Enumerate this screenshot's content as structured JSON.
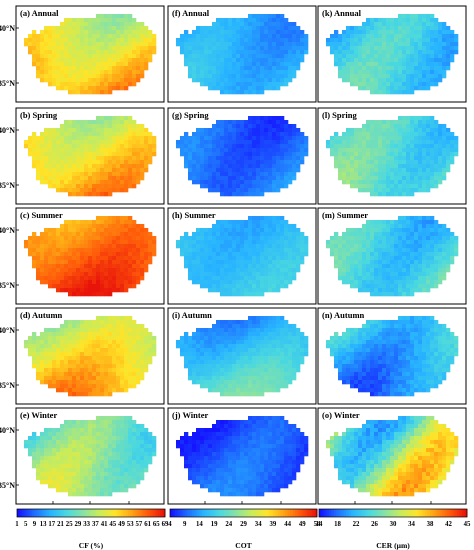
{
  "chart_data": {
    "type": "heatmap",
    "layout": {
      "rows": 5,
      "columns": 3
    },
    "columns": [
      {
        "variable": "CF (%)",
        "colorbar_ticks": [
          "1",
          "5",
          "9",
          "13",
          "17",
          "21",
          "25",
          "29",
          "33",
          "37",
          "41",
          "45",
          "49",
          "53",
          "57",
          "61",
          "65",
          "69"
        ],
        "range": [
          1,
          69
        ]
      },
      {
        "variable": "COT",
        "colorbar_ticks": [
          "4",
          "9",
          "14",
          "19",
          "24",
          "29",
          "34",
          "39",
          "44",
          "49",
          "54"
        ],
        "range": [
          4,
          54
        ]
      },
      {
        "variable": "CER (μm)",
        "colorbar_ticks": [
          "14",
          "18",
          "22",
          "26",
          "30",
          "34",
          "38",
          "42",
          "45"
        ],
        "range": [
          14,
          45
        ]
      }
    ],
    "colormap": [
      "#1414ff",
      "#1e6cff",
      "#28b4ff",
      "#4ad8e0",
      "#86e2a6",
      "#c8ec5c",
      "#ffe428",
      "#ffa414",
      "#ff5a0a",
      "#e8140a"
    ],
    "panels": [
      {
        "label": "(a) Annual",
        "variable": "CF (%)",
        "mean": 46,
        "gradient": 22,
        "spread": 6,
        "noise": 4
      },
      {
        "label": "(b) Spring",
        "variable": "CF (%)",
        "mean": 47,
        "gradient": 20,
        "spread": 6,
        "noise": 4
      },
      {
        "label": "(c) Summer",
        "variable": "CF (%)",
        "mean": 60,
        "gradient": 14,
        "spread": 4,
        "noise": 3
      },
      {
        "label": "(d) Autumn",
        "variable": "CF (%)",
        "mean": 45,
        "gradient": 24,
        "spread": 6,
        "noise": 4
      },
      {
        "label": "(e) Winter",
        "variable": "CF (%)",
        "mean": 31,
        "gradient": 14,
        "spread": 8,
        "noise": 4
      },
      {
        "label": "(f) Annual",
        "variable": "COT",
        "mean": 15,
        "gradient": 6,
        "spread": 3,
        "noise": 2
      },
      {
        "label": "(g) Spring",
        "variable": "COT",
        "mean": 10,
        "gradient": 4,
        "spread": 3,
        "noise": 2
      },
      {
        "label": "(h) Summer",
        "variable": "COT",
        "mean": 17,
        "gradient": 4,
        "spread": 2,
        "noise": 2
      },
      {
        "label": "(i) Autumn",
        "variable": "COT",
        "mean": 18,
        "gradient": 14,
        "spread": 3,
        "noise": 2
      },
      {
        "label": "(j) Winter",
        "variable": "COT",
        "mean": 8,
        "gradient": 4,
        "spread": 3,
        "noise": 2
      },
      {
        "label": "(k) Annual",
        "variable": "CER (μm)",
        "mean": 23,
        "gradient": 3,
        "spread": 3,
        "noise": 2
      },
      {
        "label": "(l) Spring",
        "variable": "CER (μm)",
        "mean": 25,
        "gradient": 4,
        "spread": 3,
        "noise": 2
      },
      {
        "label": "(m) Summer",
        "variable": "CER (μm)",
        "mean": 24,
        "gradient": 3,
        "spread": 3,
        "noise": 2
      },
      {
        "label": "(n) Autumn",
        "variable": "CER (μm)",
        "mean": 21,
        "gradient": -7,
        "spread": 3,
        "noise": 2
      },
      {
        "label": "(o) Winter",
        "variable": "CER (μm)",
        "mean": 29,
        "gradient": 5,
        "spread": 8,
        "noise": 3
      }
    ],
    "y_ticks": [
      "40°N",
      "35°N"
    ],
    "x_ticks": [
      "104°E",
      "108°E",
      "112°E"
    ]
  }
}
